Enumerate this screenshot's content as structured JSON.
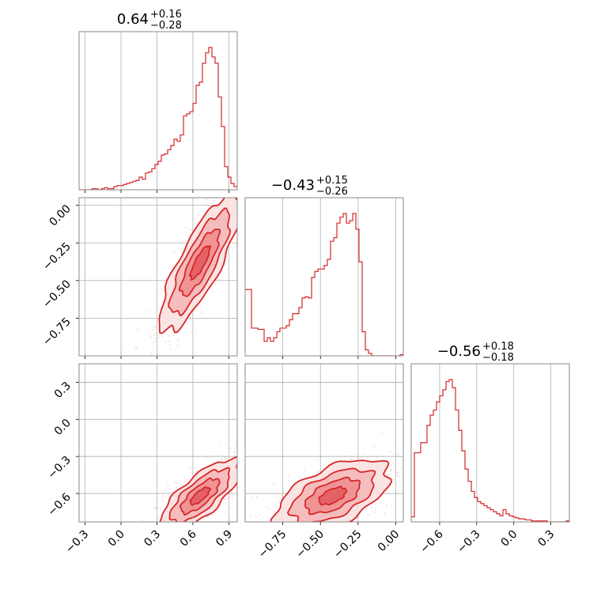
{
  "chart_data": {
    "type": "corner",
    "color": "#d62728",
    "grid": true,
    "panels": [
      {
        "kind": "hist",
        "row": 0,
        "col": 0,
        "title": {
          "median": "0.64",
          "plus": "+0.16",
          "minus": "−0.28"
        },
        "xlim": [
          -0.35,
          0.97
        ],
        "bin_width": 0.0264,
        "counts": [
          0,
          0,
          0,
          0,
          1,
          1,
          0,
          1,
          2,
          1,
          1,
          3,
          4,
          4,
          5,
          6,
          7,
          8,
          9,
          12,
          10,
          16,
          17,
          20,
          24,
          27,
          33,
          34,
          38,
          42,
          48,
          46,
          52,
          70,
          72,
          74,
          82,
          99,
          102,
          120,
          130,
          135,
          126,
          120,
          88,
          60,
          22,
          12,
          6,
          3
        ]
      },
      {
        "kind": "hist",
        "row": 1,
        "col": 1,
        "title": {
          "median": "−0.43",
          "plus": "+0.15",
          "minus": "−0.26"
        },
        "xlim": [
          -1.0,
          0.05
        ],
        "bin_width": 0.021,
        "counts": [
          55,
          55,
          23,
          23,
          22,
          22,
          12,
          15,
          12,
          15,
          20,
          23,
          23,
          25,
          30,
          35,
          35,
          40,
          48,
          49,
          48,
          65,
          70,
          72,
          72,
          75,
          80,
          95,
          98,
          110,
          115,
          118,
          110,
          112,
          118,
          105,
          78,
          20,
          5,
          2,
          0,
          0,
          0,
          0,
          0,
          0,
          0,
          0,
          0,
          1
        ]
      },
      {
        "kind": "hist",
        "row": 2,
        "col": 2,
        "title": {
          "median": "−0.56",
          "plus": "+0.18",
          "minus": "−0.18"
        },
        "xlim": [
          -0.83,
          0.45
        ],
        "bin_width": 0.0256,
        "counts": [
          5,
          68,
          68,
          78,
          78,
          95,
          105,
          110,
          118,
          124,
          130,
          138,
          140,
          132,
          110,
          90,
          70,
          52,
          40,
          30,
          24,
          20,
          18,
          16,
          14,
          12,
          10,
          8,
          6,
          12,
          8,
          6,
          5,
          4,
          3,
          3,
          2,
          2,
          1,
          1,
          1,
          1,
          1,
          0,
          0,
          0,
          0,
          0,
          0,
          1
        ]
      },
      {
        "kind": "density",
        "row": 1,
        "col": 0,
        "x": "p0",
        "y": "p1",
        "xlim": [
          -0.35,
          0.97
        ],
        "ylim": [
          -1.0,
          0.05
        ],
        "mean": [
          0.66,
          -0.38
        ],
        "sd": [
          0.16,
          0.22
        ],
        "corr": 0.82,
        "truncate_y": -1.0
      },
      {
        "kind": "density",
        "row": 2,
        "col": 0,
        "x": "p0",
        "y": "p2",
        "xlim": [
          -0.35,
          0.97
        ],
        "ylim": [
          -0.83,
          0.45
        ],
        "mean": [
          0.66,
          -0.62
        ],
        "sd": [
          0.16,
          0.14
        ],
        "corr": 0.75,
        "truncate_y": -0.83
      },
      {
        "kind": "density",
        "row": 2,
        "col": 1,
        "x": "p1",
        "y": "p2",
        "xlim": [
          -1.0,
          0.05
        ],
        "ylim": [
          -0.83,
          0.45
        ],
        "mean": [
          -0.42,
          -0.62
        ],
        "sd": [
          0.18,
          0.14
        ],
        "corr": 0.55,
        "truncate_y": -0.83
      }
    ],
    "axes": {
      "p0": {
        "ticks": [
          -0.3,
          0.0,
          0.3,
          0.6,
          0.9
        ],
        "labels": [
          "−0.3",
          "0.0",
          "0.3",
          "0.6",
          "0.9"
        ]
      },
      "p1": {
        "ticks": [
          -0.75,
          -0.5,
          -0.25,
          0.0
        ],
        "labels": [
          "−0.75",
          "−0.50",
          "−0.25",
          "0.00"
        ]
      },
      "p2": {
        "ticks": [
          -0.6,
          -0.3,
          0.0,
          0.3
        ],
        "labels": [
          "−0.6",
          "−0.3",
          "0.0",
          "0.3"
        ]
      },
      "p1_left": {
        "ticks": [
          -0.75,
          -0.5,
          -0.25,
          0.0
        ],
        "labels": [
          "−0.75",
          "−0.50",
          "−0.25",
          "0.00"
        ]
      },
      "p2_left": {
        "ticks": [
          -0.6,
          -0.3,
          0.0,
          0.3
        ],
        "labels": [
          "−0.6",
          "−0.3",
          "0.0",
          "0.3"
        ]
      }
    }
  }
}
